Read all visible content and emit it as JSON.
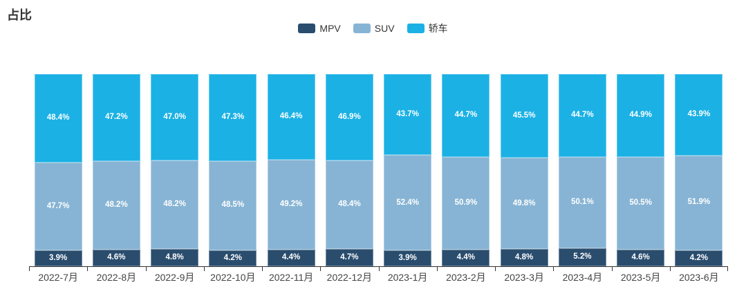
{
  "title": "占比",
  "chart_data": {
    "type": "bar",
    "stacked": true,
    "unit": "percent",
    "title": "占比",
    "xlabel": "",
    "ylabel": "",
    "ylim": [
      0,
      100
    ],
    "grid": false,
    "legend_position": "top-center",
    "label_format": "{value}%",
    "categories": [
      "2022-7月",
      "2022-8月",
      "2022-9月",
      "2022-10月",
      "2022-11月",
      "2022-12月",
      "2023-1月",
      "2023-2月",
      "2023-3月",
      "2023-4月",
      "2023-5月",
      "2023-6月"
    ],
    "series": [
      {
        "name": "MPV",
        "color": "#2A4D6E",
        "values": [
          3.9,
          4.6,
          4.8,
          4.2,
          4.4,
          4.7,
          3.9,
          4.4,
          4.8,
          5.2,
          4.6,
          4.2
        ]
      },
      {
        "name": "SUV",
        "color": "#87B4D4",
        "values": [
          47.7,
          48.2,
          48.2,
          48.5,
          49.2,
          48.4,
          52.4,
          50.9,
          49.8,
          50.1,
          50.5,
          51.9
        ]
      },
      {
        "name": "轿车",
        "color": "#1BB1E5",
        "values": [
          48.4,
          47.2,
          47.0,
          47.3,
          46.4,
          46.9,
          43.7,
          44.7,
          45.5,
          44.7,
          44.9,
          43.9
        ]
      }
    ]
  }
}
